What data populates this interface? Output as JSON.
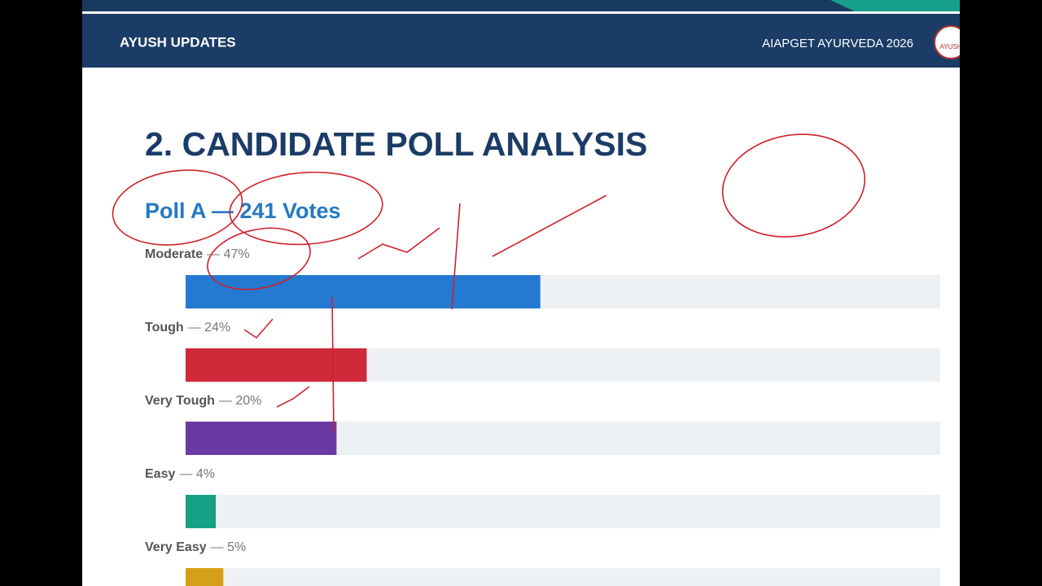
{
  "header": {
    "left": "AYUSH UPDATES",
    "right": "AIAPGET AYURVEDA 2026",
    "logo": "AYUSH"
  },
  "chart_data": {
    "type": "bar",
    "orientation": "horizontal",
    "title": "2. CANDIDATE POLL ANALYSIS",
    "subtitle": "Poll A — 241 Votes",
    "categories": [
      "Moderate",
      "Tough",
      "Very Tough",
      "Easy",
      "Very Easy"
    ],
    "values": [
      47,
      24,
      20,
      4,
      5
    ],
    "value_labels": [
      "— 47%",
      "— 24%",
      "— 20%",
      "— 4%",
      "— 5%"
    ],
    "colors": [
      "#2479d0",
      "#d0293a",
      "#6a3aa2",
      "#16a085",
      "#d4a017"
    ],
    "xlim": [
      0,
      100
    ]
  }
}
